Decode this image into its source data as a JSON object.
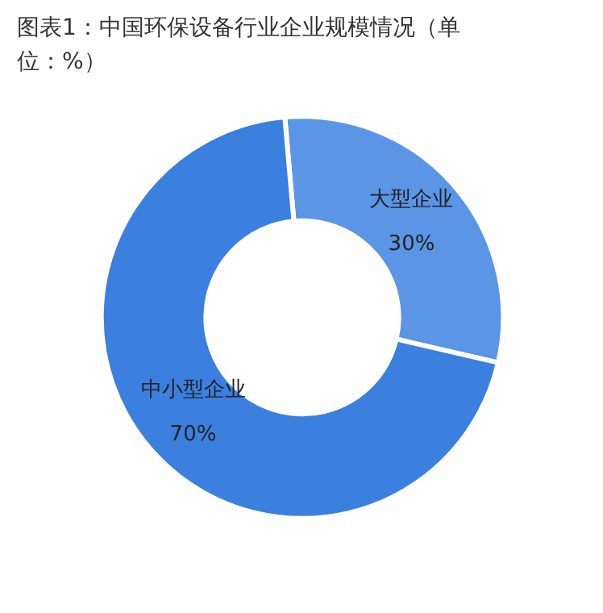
{
  "chart_data": {
    "type": "donut",
    "title": "图表1：中国环保设备行业企业规模情况（单位：%）",
    "categories": [
      "大型企业",
      "中小型企业"
    ],
    "values": [
      30,
      70
    ],
    "colors": [
      "#5b95e6",
      "#3b7fdf"
    ],
    "value_labels": [
      "30%",
      "70%"
    ]
  }
}
